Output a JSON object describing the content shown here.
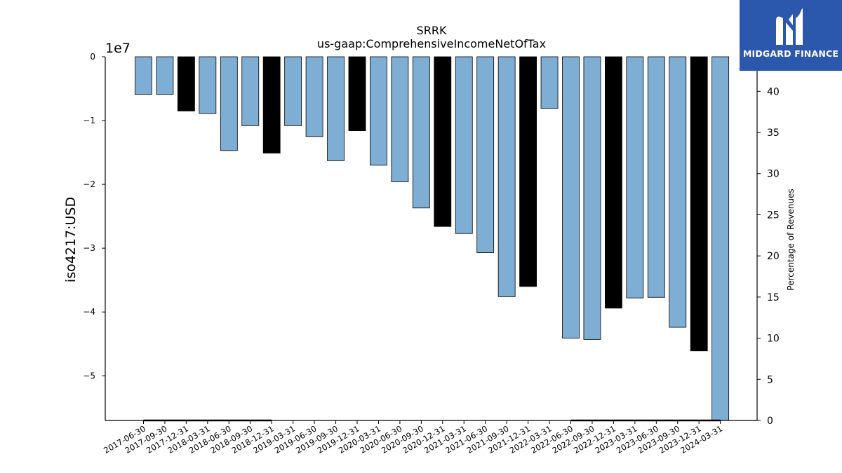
{
  "brand": {
    "name": "MIDGARD FINANCE",
    "logo_icon": "midgard-m-mark",
    "background": "#2b58ad"
  },
  "chart_data": {
    "type": "bar",
    "title": "SRRK",
    "subtitle": "us-gaap:ComprehensiveIncomeNetOfTax",
    "ylabel": "iso4217:USD",
    "ylabel_right": "Percentage of Revenues",
    "y_scale_label": "1e7",
    "ylim": [
      -57000000,
      0
    ],
    "y_ticks": [
      0,
      -10000000,
      -20000000,
      -30000000,
      -40000000,
      -50000000
    ],
    "y_tick_labels": [
      "0",
      "−1",
      "−2",
      "−3",
      "−4",
      "−5"
    ],
    "y2lim": [
      0,
      44.2
    ],
    "y2_ticks": [
      0,
      5,
      10,
      15,
      20,
      25,
      30,
      35,
      40
    ],
    "y2_tick_labels": [
      "0",
      "5",
      "10",
      "15",
      "20",
      "25",
      "30",
      "35",
      "40"
    ],
    "grid": false,
    "colors": {
      "quarter": "#7eaed3",
      "annual": "#000000"
    },
    "categories": [
      "2017-06-30",
      "2017-09-30",
      "2017-12-31",
      "2018-03-31",
      "2018-06-30",
      "2018-09-30",
      "2018-12-31",
      "2019-03-31",
      "2019-06-30",
      "2019-09-30",
      "2019-12-31",
      "2020-03-31",
      "2020-06-30",
      "2020-09-30",
      "2020-12-31",
      "2021-03-31",
      "2021-06-30",
      "2021-09-30",
      "2021-12-31",
      "2022-03-31",
      "2022-06-30",
      "2022-09-30",
      "2022-12-31",
      "2023-03-31",
      "2023-06-30",
      "2023-09-30",
      "2023-12-31",
      "2024-03-31"
    ],
    "values": [
      -5900000,
      -5900000,
      -8500000,
      -8900000,
      -14700000,
      -10800000,
      -15100000,
      -10800000,
      -12500000,
      -16300000,
      -11600000,
      -17000000,
      -19600000,
      -23700000,
      -26600000,
      -27700000,
      -30700000,
      -37600000,
      -36000000,
      -8100000,
      -44100000,
      -44300000,
      -39400000,
      -37800000,
      -37700000,
      -42400000,
      -46100000,
      -57000000
    ],
    "annual": [
      false,
      false,
      true,
      false,
      false,
      false,
      true,
      false,
      false,
      false,
      true,
      false,
      false,
      false,
      true,
      false,
      false,
      false,
      true,
      false,
      false,
      false,
      true,
      false,
      false,
      false,
      true,
      false
    ],
    "percent_of_revenues": [
      0,
      0,
      0,
      0,
      0,
      0,
      0,
      null,
      null,
      null,
      null,
      null,
      null,
      null,
      null,
      null,
      null,
      null,
      null,
      null,
      0,
      0,
      0,
      0,
      0,
      0,
      0,
      0
    ]
  }
}
